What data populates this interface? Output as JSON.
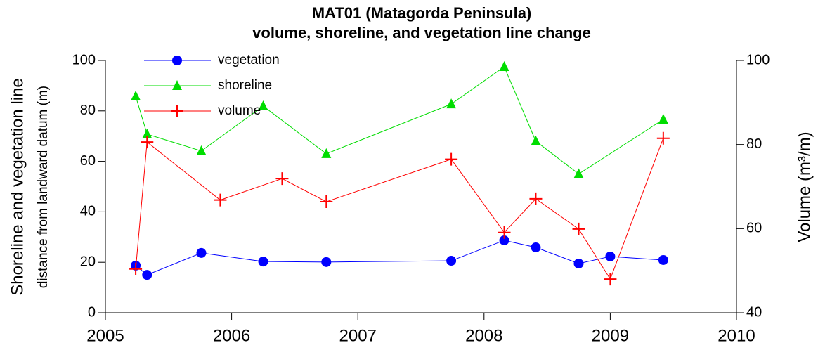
{
  "chart_data": {
    "type": "line",
    "title": [
      "MAT01 (Matagorda Peninsula)",
      "volume, shoreline, and vegetation line change"
    ],
    "y_label": [
      "Shoreline and vegetation line",
      "distance from landward datum (m)"
    ],
    "y2_label": "Volume (m³/m)",
    "xlim": [
      2005,
      2010
    ],
    "xticks": [
      2005,
      2006,
      2007,
      2008,
      2009,
      2010
    ],
    "ylim": [
      0,
      100
    ],
    "yticks": [
      0,
      20,
      40,
      60,
      80,
      100
    ],
    "y2lim": [
      40,
      100
    ],
    "y2ticks": [
      40,
      60,
      80,
      100
    ],
    "grid": false,
    "legend": "upper left",
    "series": [
      {
        "name": "vegetation",
        "color": "#0000ff",
        "marker": "circle",
        "x": [
          2005.24,
          2005.33,
          2005.76,
          2006.25,
          2006.75,
          2007.74,
          2008.16,
          2008.41,
          2008.75,
          2009.0,
          2009.42
        ],
        "values": [
          18.7,
          15.0,
          23.7,
          20.3,
          20.1,
          20.6,
          28.7,
          25.9,
          19.5,
          22.3,
          20.9
        ]
      },
      {
        "name": "shoreline",
        "color": "#00dd00",
        "marker": "triangle",
        "x": [
          2005.24,
          2005.33,
          2005.76,
          2006.25,
          2006.75,
          2007.74,
          2008.16,
          2008.41,
          2008.75,
          2009.42
        ],
        "values": [
          85.8,
          70.8,
          64.1,
          81.9,
          63.0,
          82.7,
          97.5,
          68.0,
          55.0,
          76.6
        ]
      },
      {
        "name": "volume",
        "color": "#ff0000",
        "marker": "plus",
        "axis": "y2",
        "x": [
          2005.24,
          2005.33,
          2005.91,
          2006.4,
          2006.75,
          2007.74,
          2008.16,
          2008.41,
          2008.75,
          2009.0,
          2009.42
        ],
        "values": [
          50.4,
          80.6,
          66.8,
          71.9,
          66.4,
          76.5,
          59.1,
          67.1,
          59.9,
          48.0,
          81.5
        ]
      }
    ]
  }
}
